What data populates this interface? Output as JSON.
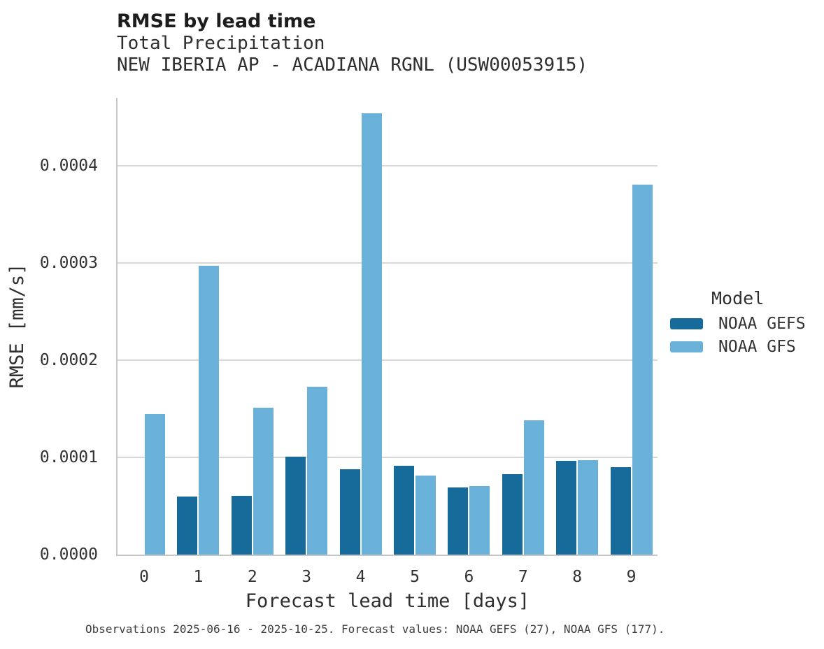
{
  "header": {
    "title": "RMSE by lead time",
    "subtitle": "Total Precipitation",
    "station": "NEW IBERIA AP - ACADIANA RGNL (USW00053915)"
  },
  "legend": {
    "title": "Model"
  },
  "footer": {
    "caption": "Observations 2025-06-16 - 2025-10-25. Forecast values: NOAA GEFS (27), NOAA GFS (177)."
  },
  "colors": {
    "noaa_gefs": "#176b9a",
    "noaa_gfs": "#69b1d8",
    "gridline": "#d7d7d7",
    "spine": "#c6c6c6"
  },
  "chart_data": {
    "type": "bar",
    "title": "RMSE by lead time",
    "subtitle": "Total Precipitation",
    "station": "NEW IBERIA AP - ACADIANA RGNL (USW00053915)",
    "xlabel": "Forecast lead time [days]",
    "ylabel": "RMSE [mm/s]",
    "categories": [
      "0",
      "1",
      "2",
      "3",
      "4",
      "5",
      "6",
      "7",
      "8",
      "9"
    ],
    "ylim": [
      0,
      0.00047
    ],
    "yticks": [
      0.0,
      0.0001,
      0.0002,
      0.0003,
      0.0004
    ],
    "ytick_labels": [
      "0.0000",
      "0.0001",
      "0.0002",
      "0.0003",
      "0.0004"
    ],
    "grid": "horizontal",
    "legend_position": "right",
    "series": [
      {
        "name": "NOAA GEFS",
        "color": "#176b9a",
        "values": [
          null,
          5.95e-05,
          6.05e-05,
          0.000101,
          8.75e-05,
          9.15e-05,
          6.9e-05,
          8.25e-05,
          9.65e-05,
          9e-05
        ]
      },
      {
        "name": "NOAA GFS",
        "color": "#69b1d8",
        "values": [
          0.000145,
          0.000297,
          0.000151,
          0.000173,
          0.000454,
          8.1e-05,
          7.05e-05,
          0.000138,
          9.75e-05,
          0.000381
        ]
      }
    ]
  }
}
